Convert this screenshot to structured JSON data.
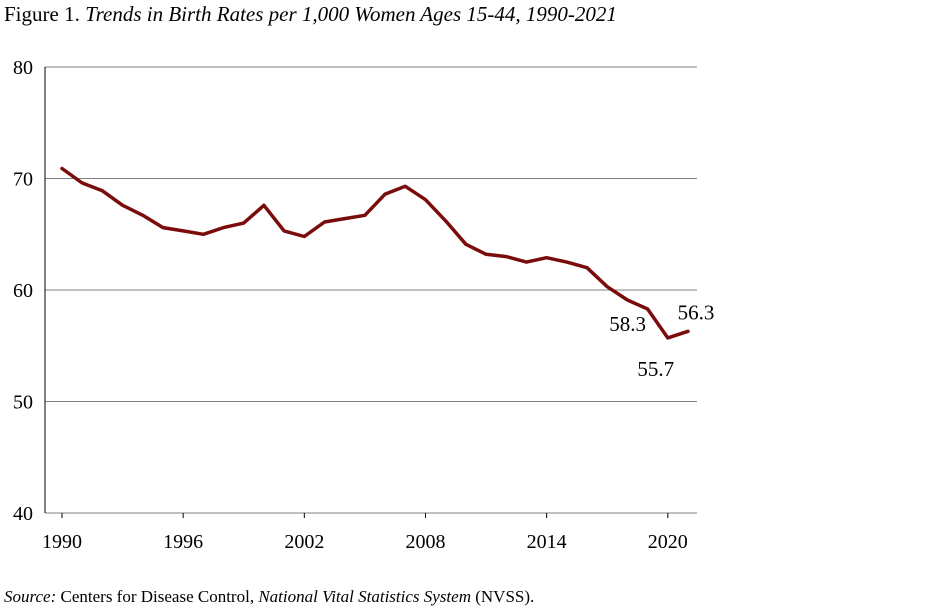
{
  "title": {
    "prefix": "Figure 1.",
    "main": "Trends in Birth Rates per 1,000 Women Ages 15-44, 1990-2021"
  },
  "source": {
    "label": "Source:",
    "text_a": "Centers for Disease Control,",
    "italic": "National Vital Statistics System",
    "text_b": "(NVSS)."
  },
  "colors": {
    "line": "#7a0c0c",
    "grid": "#808080"
  },
  "chart_data": {
    "type": "line",
    "title": "Trends in Birth Rates per 1,000 Women Ages 15-44, 1990-2021",
    "xlabel": "",
    "ylabel": "",
    "ylim": [
      40,
      80
    ],
    "xlim": [
      1990,
      2021
    ],
    "yticks": [
      "40",
      "50",
      "60",
      "70",
      "80"
    ],
    "xticks": [
      "1990",
      "1996",
      "2002",
      "2008",
      "2014",
      "2020"
    ],
    "grid": true,
    "series": [
      {
        "x": [
          1990,
          1991,
          1992,
          1993,
          1994,
          1995,
          1996,
          1997,
          1998,
          1999,
          2000,
          2001,
          2002,
          2003,
          2004,
          2005,
          2006,
          2007,
          2008,
          2009,
          2010,
          2011,
          2012,
          2013,
          2014,
          2015,
          2016,
          2017,
          2018,
          2019,
          2020,
          2021
        ],
        "values": [
          70.9,
          69.6,
          68.9,
          67.6,
          66.7,
          65.6,
          65.3,
          65.0,
          65.6,
          66.0,
          67.6,
          65.3,
          64.8,
          66.1,
          66.4,
          66.7,
          68.6,
          69.3,
          68.1,
          66.2,
          64.1,
          63.2,
          63.0,
          62.5,
          62.9,
          62.5,
          62.0,
          60.3,
          59.1,
          58.3,
          55.7,
          56.3
        ]
      }
    ],
    "annotations": [
      {
        "x": 2019,
        "y": 58.3,
        "text": "58.3"
      },
      {
        "x": 2020,
        "y": 55.7,
        "text": "55.7"
      },
      {
        "x": 2021,
        "y": 56.3,
        "text": "56.3"
      }
    ]
  }
}
